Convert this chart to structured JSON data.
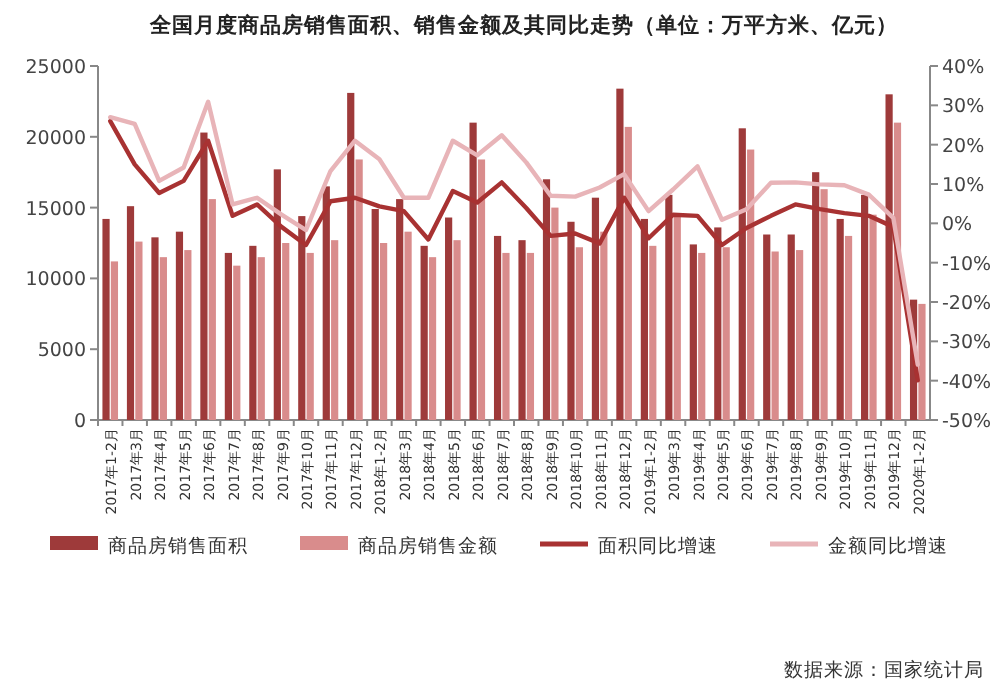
{
  "chart_data": {
    "type": "bar",
    "title": "全国月度商品房销售面积、销售金额及其同比走势（单位：万平方米、亿元）",
    "categories": [
      "2017年1-2月",
      "2017年3月",
      "2017年4月",
      "2017年5月",
      "2017年6月",
      "2017年7月",
      "2017年8月",
      "2017年9月",
      "2017年10月",
      "2017年11月",
      "2017年12月",
      "2018年1-2月",
      "2018年3月",
      "2018年4月",
      "2018年5月",
      "2018年6月",
      "2018年7月",
      "2018年8月",
      "2018年9月",
      "2018年10月",
      "2018年11月",
      "2018年12月",
      "2019年1-2月",
      "2019年3月",
      "2019年4月",
      "2019年5月",
      "2019年6月",
      "2019年7月",
      "2019年8月",
      "2019年9月",
      "2019年10月",
      "2019年11月",
      "2019年12月",
      "2020年1-2月"
    ],
    "series": [
      {
        "name": "商品房销售面积",
        "color": "#9e3a3a",
        "values": [
          14200,
          15100,
          12900,
          13300,
          20300,
          11800,
          12300,
          17700,
          14400,
          16500,
          23100,
          14900,
          15600,
          12300,
          14300,
          21000,
          13000,
          12700,
          17000,
          14000,
          15700,
          23400,
          14200,
          15900,
          12400,
          13600,
          20600,
          13100,
          13100,
          17500,
          14200,
          15900,
          23000,
          8500
        ]
      },
      {
        "name": "商品房销售金额",
        "color": "#d98c8c",
        "values": [
          11200,
          12600,
          11500,
          12000,
          15600,
          10900,
          11500,
          12500,
          11800,
          12700,
          18400,
          12500,
          13300,
          11500,
          12700,
          18400,
          11800,
          11800,
          15000,
          12200,
          13300,
          20700,
          12300,
          14500,
          11800,
          12200,
          19100,
          11900,
          12000,
          16300,
          13000,
          14500,
          21000,
          8200
        ]
      },
      {
        "name": "面积同比增速",
        "type": "line",
        "axis": "y2",
        "color": "#a83232",
        "values": [
          26,
          15,
          7.7,
          10.8,
          21,
          1.9,
          4.8,
          -0.9,
          -5.5,
          5.6,
          6.5,
          4.3,
          3.1,
          -4.1,
          8.2,
          5.3,
          10.4,
          3.9,
          -3.2,
          -2.6,
          -5.1,
          6.5,
          -3.8,
          2.2,
          1.9,
          -5.5,
          -1.2,
          1.9,
          4.8,
          3.6,
          2.6,
          1.9,
          -0.9,
          -39.9
        ]
      },
      {
        "name": "金额同比增速",
        "type": "line",
        "axis": "y2",
        "color": "#e8b4b8",
        "values": [
          27,
          25.3,
          10.8,
          14.2,
          30.9,
          4.8,
          6.5,
          2.2,
          -1.7,
          13.3,
          21,
          16.3,
          6.5,
          6.5,
          21,
          17.3,
          22.4,
          15.5,
          7,
          6.8,
          9.1,
          12.5,
          3.1,
          8.6,
          14.5,
          0.9,
          3.6,
          10.3,
          10.4,
          9.9,
          9.7,
          7.3,
          1.4,
          -35.9
        ]
      }
    ],
    "ylim": [
      0,
      25000
    ],
    "yticks": [
      0,
      5000,
      10000,
      15000,
      20000,
      25000
    ],
    "y2lim": [
      -50,
      40
    ],
    "y2ticks": [
      {
        "value": -50,
        "label": "-50%"
      },
      {
        "value": -40,
        "label": "-40%"
      },
      {
        "value": -30,
        "label": "-30%"
      },
      {
        "value": -20,
        "label": "-20%"
      },
      {
        "value": -10,
        "label": "-10%"
      },
      {
        "value": 0,
        "label": "0%"
      },
      {
        "value": 10,
        "label": "10%"
      },
      {
        "value": 20,
        "label": "20%"
      },
      {
        "value": 30,
        "label": "30%"
      },
      {
        "value": 40,
        "label": "40%"
      }
    ],
    "legend": "bottom",
    "marker": "none",
    "line_style": "solid",
    "annotations": [
      "数据来源：国家统计局"
    ]
  }
}
